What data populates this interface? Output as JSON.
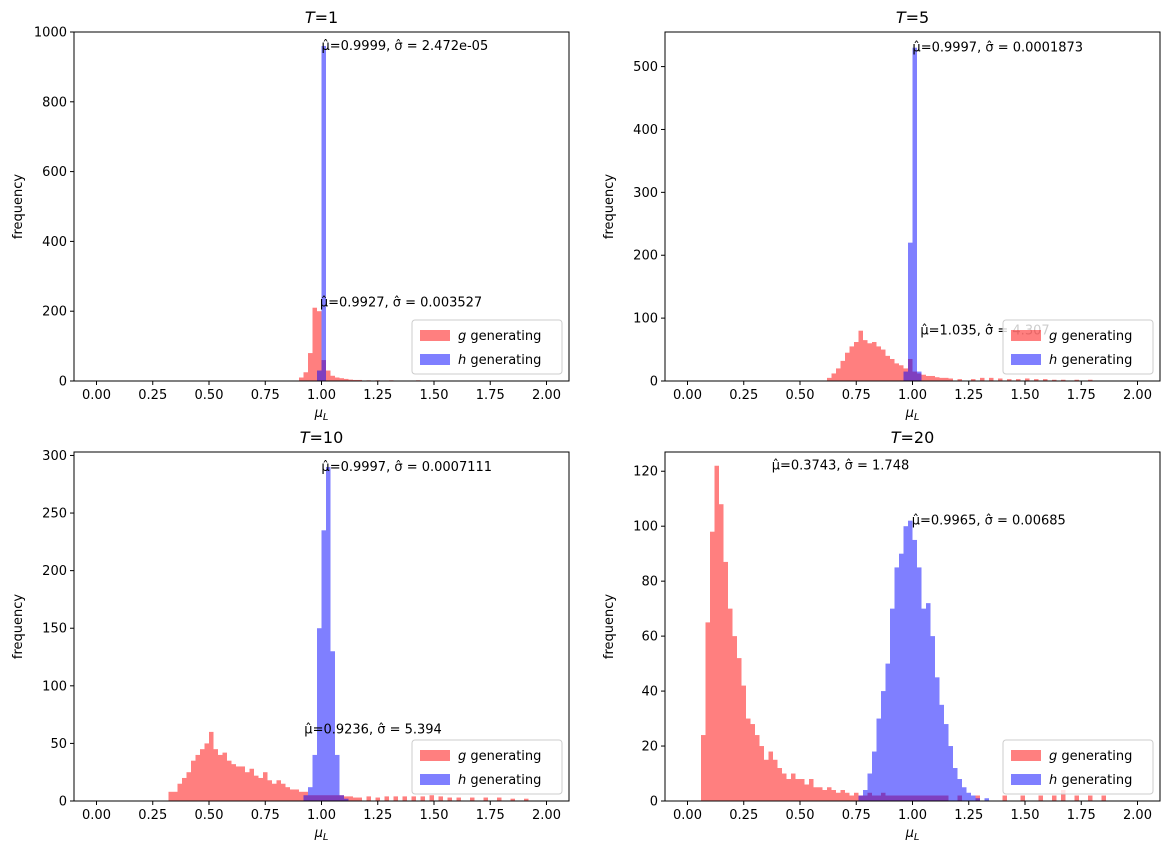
{
  "chart_data": [
    {
      "type": "bar",
      "title": "T=1",
      "xlabel": "μ_L",
      "ylabel": "frequency",
      "xlim": [
        -0.1,
        2.1
      ],
      "ylim": [
        0,
        1000
      ],
      "xticks": [
        0.0,
        0.25,
        0.5,
        0.75,
        1.0,
        1.25,
        1.5,
        1.75,
        2.0
      ],
      "yticks": [
        0,
        200,
        400,
        600,
        800,
        1000
      ],
      "legend_position": "lower-right",
      "series": [
        {
          "name": "g generating",
          "color": "#ff0000",
          "bin_width": 0.02,
          "bins": [
            [
              0.91,
              10
            ],
            [
              0.93,
              25
            ],
            [
              0.95,
              80
            ],
            [
              0.97,
              210
            ],
            [
              0.99,
              200
            ],
            [
              1.01,
              60
            ],
            [
              1.03,
              30
            ],
            [
              1.05,
              15
            ],
            [
              1.07,
              10
            ],
            [
              1.09,
              8
            ],
            [
              1.11,
              6
            ],
            [
              1.13,
              4
            ],
            [
              1.15,
              3
            ],
            [
              1.17,
              3
            ],
            [
              1.21,
              2
            ],
            [
              1.25,
              2
            ],
            [
              1.31,
              2
            ],
            [
              1.37,
              1
            ],
            [
              1.43,
              2
            ],
            [
              1.49,
              1
            ],
            [
              1.55,
              1
            ],
            [
              1.61,
              1
            ]
          ],
          "annotation": {
            "x": 0.9927,
            "y": 225,
            "text": "μ̂=0.9927, σ̂ = 0.003527"
          }
        },
        {
          "name": "h generating",
          "color": "#0000ff",
          "bin_width": 0.02,
          "bins": [
            [
              0.99,
              30
            ],
            [
              1.01,
              960
            ]
          ],
          "annotation": {
            "x": 0.9999,
            "y": 960,
            "text": "μ̂=0.9999, σ̂ = 2.472e-05"
          }
        }
      ]
    },
    {
      "type": "bar",
      "title": "T=5",
      "xlabel": "μ_L",
      "ylabel": "frequency",
      "xlim": [
        -0.1,
        2.1
      ],
      "ylim": [
        0,
        555
      ],
      "xticks": [
        0.0,
        0.25,
        0.5,
        0.75,
        1.0,
        1.25,
        1.5,
        1.75,
        2.0
      ],
      "yticks": [
        0,
        100,
        200,
        300,
        400,
        500
      ],
      "legend_position": "lower-right",
      "series": [
        {
          "name": "g generating",
          "color": "#ff0000",
          "bin_width": 0.02,
          "bins": [
            [
              0.63,
              5
            ],
            [
              0.65,
              12
            ],
            [
              0.67,
              20
            ],
            [
              0.69,
              32
            ],
            [
              0.71,
              45
            ],
            [
              0.73,
              55
            ],
            [
              0.75,
              62
            ],
            [
              0.77,
              80
            ],
            [
              0.79,
              65
            ],
            [
              0.81,
              60
            ],
            [
              0.83,
              62
            ],
            [
              0.85,
              55
            ],
            [
              0.87,
              50
            ],
            [
              0.89,
              40
            ],
            [
              0.91,
              35
            ],
            [
              0.93,
              28
            ],
            [
              0.95,
              25
            ],
            [
              0.97,
              20
            ],
            [
              0.99,
              35
            ],
            [
              1.01,
              15
            ],
            [
              1.03,
              12
            ],
            [
              1.05,
              10
            ],
            [
              1.07,
              8
            ],
            [
              1.09,
              8
            ],
            [
              1.11,
              6
            ],
            [
              1.13,
              5
            ],
            [
              1.15,
              5
            ],
            [
              1.17,
              4
            ],
            [
              1.21,
              3
            ],
            [
              1.27,
              3
            ],
            [
              1.31,
              5
            ],
            [
              1.35,
              5
            ],
            [
              1.39,
              4
            ],
            [
              1.43,
              3
            ],
            [
              1.47,
              3
            ],
            [
              1.51,
              4
            ],
            [
              1.55,
              3
            ],
            [
              1.59,
              3
            ],
            [
              1.63,
              2
            ],
            [
              1.67,
              2
            ],
            [
              1.73,
              2
            ],
            [
              1.79,
              2
            ]
          ],
          "annotation": {
            "x": 1.035,
            "y": 80,
            "text": "μ̂=1.035, σ̂ = 4.307"
          }
        },
        {
          "name": "h generating",
          "color": "#0000ff",
          "bin_width": 0.02,
          "bins": [
            [
              0.97,
              15
            ],
            [
              0.99,
              220
            ],
            [
              1.01,
              530
            ],
            [
              1.03,
              15
            ]
          ],
          "annotation": {
            "x": 0.9997,
            "y": 530,
            "text": "μ̂=0.9997, σ̂ = 0.0001873"
          }
        }
      ]
    },
    {
      "type": "bar",
      "title": "T=10",
      "xlabel": "μ_L",
      "ylabel": "frequency",
      "xlim": [
        -0.1,
        2.1
      ],
      "ylim": [
        0,
        303
      ],
      "xticks": [
        0.0,
        0.25,
        0.5,
        0.75,
        1.0,
        1.25,
        1.5,
        1.75,
        2.0
      ],
      "yticks": [
        0,
        50,
        100,
        150,
        200,
        250,
        300
      ],
      "legend_position": "lower-right",
      "series": [
        {
          "name": "g generating",
          "color": "#ff0000",
          "bin_width": 0.02,
          "bins": [
            [
              0.33,
              8
            ],
            [
              0.35,
              8
            ],
            [
              0.37,
              15
            ],
            [
              0.39,
              20
            ],
            [
              0.41,
              25
            ],
            [
              0.43,
              35
            ],
            [
              0.45,
              40
            ],
            [
              0.47,
              45
            ],
            [
              0.49,
              50
            ],
            [
              0.51,
              60
            ],
            [
              0.53,
              45
            ],
            [
              0.55,
              40
            ],
            [
              0.57,
              42
            ],
            [
              0.59,
              35
            ],
            [
              0.61,
              32
            ],
            [
              0.63,
              30
            ],
            [
              0.65,
              30
            ],
            [
              0.67,
              25
            ],
            [
              0.69,
              28
            ],
            [
              0.71,
              22
            ],
            [
              0.73,
              20
            ],
            [
              0.75,
              25
            ],
            [
              0.77,
              18
            ],
            [
              0.79,
              15
            ],
            [
              0.81,
              18
            ],
            [
              0.83,
              15
            ],
            [
              0.85,
              12
            ],
            [
              0.87,
              10
            ],
            [
              0.89,
              10
            ],
            [
              0.91,
              8
            ],
            [
              0.93,
              8
            ],
            [
              0.95,
              5
            ],
            [
              0.97,
              5
            ],
            [
              0.99,
              5
            ],
            [
              1.01,
              5
            ],
            [
              1.03,
              5
            ],
            [
              1.05,
              5
            ],
            [
              1.07,
              5
            ],
            [
              1.09,
              5
            ],
            [
              1.11,
              4
            ],
            [
              1.13,
              4
            ],
            [
              1.15,
              3
            ],
            [
              1.17,
              3
            ],
            [
              1.21,
              4
            ],
            [
              1.25,
              3
            ],
            [
              1.29,
              4
            ],
            [
              1.33,
              4
            ],
            [
              1.37,
              4
            ],
            [
              1.41,
              4
            ],
            [
              1.45,
              4
            ],
            [
              1.49,
              5
            ],
            [
              1.53,
              4
            ],
            [
              1.57,
              3
            ],
            [
              1.61,
              3
            ],
            [
              1.67,
              3
            ],
            [
              1.73,
              3
            ],
            [
              1.79,
              3
            ],
            [
              1.85,
              2
            ],
            [
              1.91,
              2
            ]
          ],
          "annotation": {
            "x": 0.9236,
            "y": 62,
            "text": "μ̂=0.9236, σ̂ = 5.394"
          }
        },
        {
          "name": "h generating",
          "color": "#0000ff",
          "bin_width": 0.02,
          "bins": [
            [
              0.93,
              5
            ],
            [
              0.95,
              12
            ],
            [
              0.97,
              40
            ],
            [
              0.99,
              150
            ],
            [
              1.01,
              235
            ],
            [
              1.03,
              290
            ],
            [
              1.05,
              130
            ],
            [
              1.07,
              40
            ],
            [
              1.09,
              5
            ],
            [
              1.11,
              2
            ]
          ],
          "annotation": {
            "x": 0.9997,
            "y": 290,
            "text": "μ̂=0.9997, σ̂ = 0.0007111"
          }
        }
      ]
    },
    {
      "type": "bar",
      "title": "T=20",
      "xlabel": "μ_L",
      "ylabel": "frequency",
      "xlim": [
        -0.1,
        2.1
      ],
      "ylim": [
        0,
        127
      ],
      "xticks": [
        0.0,
        0.25,
        0.5,
        0.75,
        1.0,
        1.25,
        1.5,
        1.75,
        2.0
      ],
      "yticks": [
        0,
        20,
        40,
        60,
        80,
        100,
        120
      ],
      "legend_position": "lower-right",
      "series": [
        {
          "name": "g generating",
          "color": "#ff0000",
          "bin_width": 0.02,
          "bins": [
            [
              0.07,
              24
            ],
            [
              0.09,
              65
            ],
            [
              0.11,
              98
            ],
            [
              0.13,
              122
            ],
            [
              0.15,
              108
            ],
            [
              0.17,
              87
            ],
            [
              0.19,
              70
            ],
            [
              0.21,
              60
            ],
            [
              0.23,
              52
            ],
            [
              0.25,
              42
            ],
            [
              0.27,
              30
            ],
            [
              0.29,
              28
            ],
            [
              0.31,
              24
            ],
            [
              0.33,
              20
            ],
            [
              0.35,
              15
            ],
            [
              0.37,
              18
            ],
            [
              0.39,
              15
            ],
            [
              0.41,
              12
            ],
            [
              0.43,
              10
            ],
            [
              0.45,
              8
            ],
            [
              0.47,
              10
            ],
            [
              0.49,
              8
            ],
            [
              0.51,
              8
            ],
            [
              0.53,
              6
            ],
            [
              0.55,
              8
            ],
            [
              0.57,
              5
            ],
            [
              0.59,
              5
            ],
            [
              0.61,
              4
            ],
            [
              0.63,
              5
            ],
            [
              0.65,
              4
            ],
            [
              0.67,
              3
            ],
            [
              0.69,
              4
            ],
            [
              0.71,
              3
            ],
            [
              0.73,
              2
            ],
            [
              0.75,
              3
            ],
            [
              0.77,
              2
            ],
            [
              0.79,
              2
            ],
            [
              0.81,
              3
            ],
            [
              0.83,
              2
            ],
            [
              0.85,
              2
            ],
            [
              0.87,
              3
            ],
            [
              0.89,
              2
            ],
            [
              0.91,
              2
            ],
            [
              0.93,
              2
            ],
            [
              0.95,
              2
            ],
            [
              0.97,
              2
            ],
            [
              0.99,
              2
            ],
            [
              1.01,
              2
            ],
            [
              1.03,
              2
            ],
            [
              1.05,
              2
            ],
            [
              1.07,
              2
            ],
            [
              1.09,
              2
            ],
            [
              1.11,
              2
            ],
            [
              1.13,
              2
            ],
            [
              1.15,
              2
            ],
            [
              1.21,
              2
            ],
            [
              1.29,
              2
            ],
            [
              1.41,
              2
            ],
            [
              1.49,
              2
            ],
            [
              1.57,
              2
            ],
            [
              1.63,
              2
            ],
            [
              1.67,
              4
            ],
            [
              1.73,
              2
            ],
            [
              1.79,
              2
            ],
            [
              1.85,
              2
            ]
          ],
          "annotation": {
            "x": 0.3743,
            "y": 122,
            "text": "μ̂=0.3743, σ̂ = 1.748"
          }
        },
        {
          "name": "h generating",
          "color": "#0000ff",
          "bin_width": 0.02,
          "bins": [
            [
              0.77,
              2
            ],
            [
              0.79,
              4
            ],
            [
              0.81,
              10
            ],
            [
              0.83,
              18
            ],
            [
              0.85,
              30
            ],
            [
              0.87,
              40
            ],
            [
              0.89,
              50
            ],
            [
              0.91,
              70
            ],
            [
              0.93,
              85
            ],
            [
              0.95,
              90
            ],
            [
              0.97,
              100
            ],
            [
              0.99,
              102
            ],
            [
              1.01,
              95
            ],
            [
              1.03,
              85
            ],
            [
              1.05,
              70
            ],
            [
              1.07,
              72
            ],
            [
              1.09,
              60
            ],
            [
              1.11,
              45
            ],
            [
              1.13,
              35
            ],
            [
              1.15,
              28
            ],
            [
              1.17,
              20
            ],
            [
              1.19,
              12
            ],
            [
              1.21,
              8
            ],
            [
              1.23,
              5
            ],
            [
              1.25,
              3
            ],
            [
              1.27,
              2
            ],
            [
              1.29,
              1
            ],
            [
              1.33,
              1
            ]
          ],
          "annotation": {
            "x": 0.9965,
            "y": 102,
            "text": "μ̂=0.9965, σ̂ = 0.00685"
          }
        }
      ]
    }
  ]
}
